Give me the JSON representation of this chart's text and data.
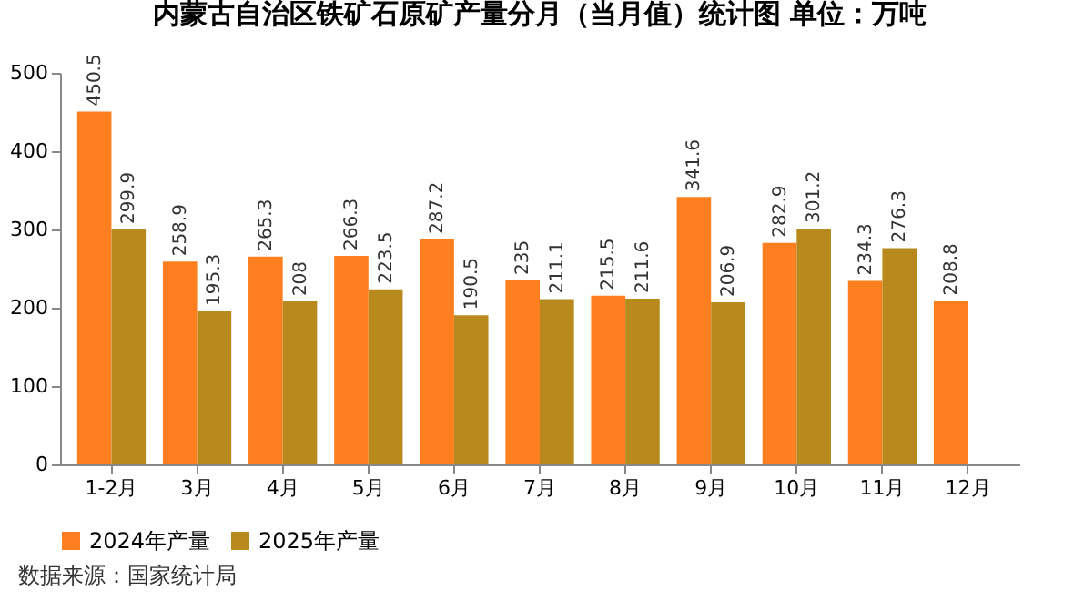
{
  "chart_data": {
    "type": "bar",
    "title": "内蒙古自治区铁矿石原矿产量分月（当月值）统计图  单位：万吨",
    "categories": [
      "1-2月",
      "3月",
      "4月",
      "5月",
      "6月",
      "7月",
      "8月",
      "9月",
      "10月",
      "11月",
      "12月"
    ],
    "series": [
      {
        "name": "2024年产量",
        "color": "#fe7f1f",
        "values": [
          450.5,
          258.9,
          265.3,
          266.3,
          287.2,
          235,
          215.5,
          341.6,
          282.9,
          234.3,
          208.8
        ]
      },
      {
        "name": "2025年产量",
        "color": "#b8891c",
        "values": [
          299.9,
          195.3,
          208,
          223.5,
          190.5,
          211.1,
          211.6,
          206.9,
          301.2,
          276.3,
          null
        ]
      }
    ],
    "ylim": [
      0,
      500
    ],
    "yticks": [
      0,
      100,
      200,
      300,
      400,
      500
    ],
    "data_labels": true,
    "legend": "bottom",
    "annotations": [
      "数据来源：国家统计局"
    ]
  }
}
